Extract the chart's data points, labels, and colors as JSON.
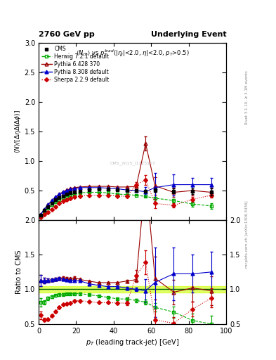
{
  "title_left": "2760 GeV pp",
  "title_right": "Underlying Event",
  "ylabel_main": "$\\langle N\\rangle/[\\Delta\\eta\\Delta(\\Delta\\phi)]$",
  "ylabel_ratio": "Ratio to CMS",
  "xlabel": "$p_T$ (leading track-jet) [GeV]",
  "watermark": "CMS_2015_I1325107",
  "ylim_main": [
    0,
    3.0
  ],
  "ylim_ratio": [
    0.5,
    2.0
  ],
  "xlim": [
    0,
    100
  ],
  "yticks_main": [
    0.5,
    1.0,
    1.5,
    2.0,
    2.5,
    3.0
  ],
  "yticks_ratio": [
    0.5,
    1.0,
    1.5,
    2.0
  ],
  "xticks": [
    0,
    20,
    40,
    60,
    80,
    100
  ],
  "cms_x": [
    1,
    3,
    5,
    7,
    9,
    11,
    13,
    15,
    17,
    19,
    22,
    27,
    32,
    37,
    42,
    47,
    52,
    57,
    62,
    72,
    82,
    92
  ],
  "cms_y": [
    0.08,
    0.16,
    0.23,
    0.29,
    0.34,
    0.38,
    0.41,
    0.44,
    0.46,
    0.47,
    0.49,
    0.51,
    0.52,
    0.52,
    0.51,
    0.5,
    0.5,
    0.49,
    0.5,
    0.49,
    0.49,
    0.48
  ],
  "cms_yerr": [
    0.005,
    0.005,
    0.005,
    0.005,
    0.005,
    0.005,
    0.005,
    0.005,
    0.005,
    0.005,
    0.005,
    0.005,
    0.005,
    0.005,
    0.005,
    0.005,
    0.01,
    0.02,
    0.03,
    0.04,
    0.05,
    0.06
  ],
  "herwig_x": [
    1,
    3,
    5,
    7,
    9,
    11,
    13,
    15,
    17,
    19,
    22,
    27,
    32,
    37,
    42,
    47,
    52,
    57,
    62,
    72,
    82,
    92
  ],
  "herwig_y": [
    0.065,
    0.13,
    0.2,
    0.26,
    0.31,
    0.35,
    0.38,
    0.41,
    0.43,
    0.44,
    0.46,
    0.47,
    0.47,
    0.46,
    0.44,
    0.43,
    0.42,
    0.4,
    0.37,
    0.33,
    0.27,
    0.24
  ],
  "herwig_yerr": [
    0.003,
    0.003,
    0.003,
    0.003,
    0.003,
    0.003,
    0.003,
    0.003,
    0.003,
    0.003,
    0.003,
    0.003,
    0.003,
    0.003,
    0.003,
    0.005,
    0.008,
    0.01,
    0.02,
    0.03,
    0.04,
    0.05
  ],
  "pythia6_x": [
    1,
    3,
    5,
    7,
    9,
    11,
    13,
    15,
    17,
    19,
    22,
    27,
    32,
    37,
    42,
    47,
    52,
    57,
    62,
    72,
    82,
    92
  ],
  "pythia6_y": [
    0.09,
    0.18,
    0.26,
    0.33,
    0.39,
    0.44,
    0.48,
    0.51,
    0.53,
    0.55,
    0.56,
    0.57,
    0.57,
    0.57,
    0.56,
    0.56,
    0.57,
    1.3,
    0.58,
    0.47,
    0.5,
    0.47
  ],
  "pythia6_yerr": [
    0.003,
    0.003,
    0.003,
    0.003,
    0.003,
    0.003,
    0.003,
    0.003,
    0.003,
    0.003,
    0.003,
    0.003,
    0.003,
    0.003,
    0.003,
    0.008,
    0.01,
    0.12,
    0.15,
    0.08,
    0.08,
    0.08
  ],
  "pythia8_x": [
    1,
    3,
    5,
    7,
    9,
    11,
    13,
    15,
    17,
    19,
    22,
    27,
    32,
    37,
    42,
    47,
    52,
    57,
    62,
    72,
    82,
    92
  ],
  "pythia8_y": [
    0.09,
    0.18,
    0.26,
    0.33,
    0.39,
    0.44,
    0.47,
    0.5,
    0.52,
    0.53,
    0.55,
    0.55,
    0.55,
    0.54,
    0.53,
    0.51,
    0.5,
    0.48,
    0.55,
    0.6,
    0.6,
    0.6
  ],
  "pythia8_yerr": [
    0.003,
    0.003,
    0.003,
    0.003,
    0.003,
    0.003,
    0.003,
    0.003,
    0.003,
    0.003,
    0.003,
    0.003,
    0.003,
    0.003,
    0.003,
    0.008,
    0.01,
    0.08,
    0.25,
    0.18,
    0.12,
    0.12
  ],
  "sherpa_x": [
    1,
    3,
    5,
    7,
    9,
    11,
    13,
    15,
    17,
    19,
    22,
    27,
    32,
    37,
    42,
    47,
    52,
    57,
    62,
    72,
    82,
    92
  ],
  "sherpa_y": [
    0.05,
    0.09,
    0.13,
    0.18,
    0.23,
    0.28,
    0.32,
    0.35,
    0.37,
    0.39,
    0.41,
    0.42,
    0.42,
    0.42,
    0.41,
    0.4,
    0.6,
    0.68,
    0.28,
    0.25,
    0.35,
    0.42
  ],
  "sherpa_yerr": [
    0.003,
    0.003,
    0.003,
    0.003,
    0.003,
    0.003,
    0.003,
    0.003,
    0.003,
    0.003,
    0.003,
    0.003,
    0.003,
    0.003,
    0.008,
    0.015,
    0.04,
    0.08,
    0.08,
    0.04,
    0.04,
    0.04
  ],
  "cms_color": "#000000",
  "herwig_color": "#00aa00",
  "pythia6_color": "#990000",
  "pythia8_color": "#0000cc",
  "sherpa_color": "#cc0000",
  "band_color": "#ccff00",
  "band_alpha": 0.6,
  "band_halfwidth": 0.05
}
